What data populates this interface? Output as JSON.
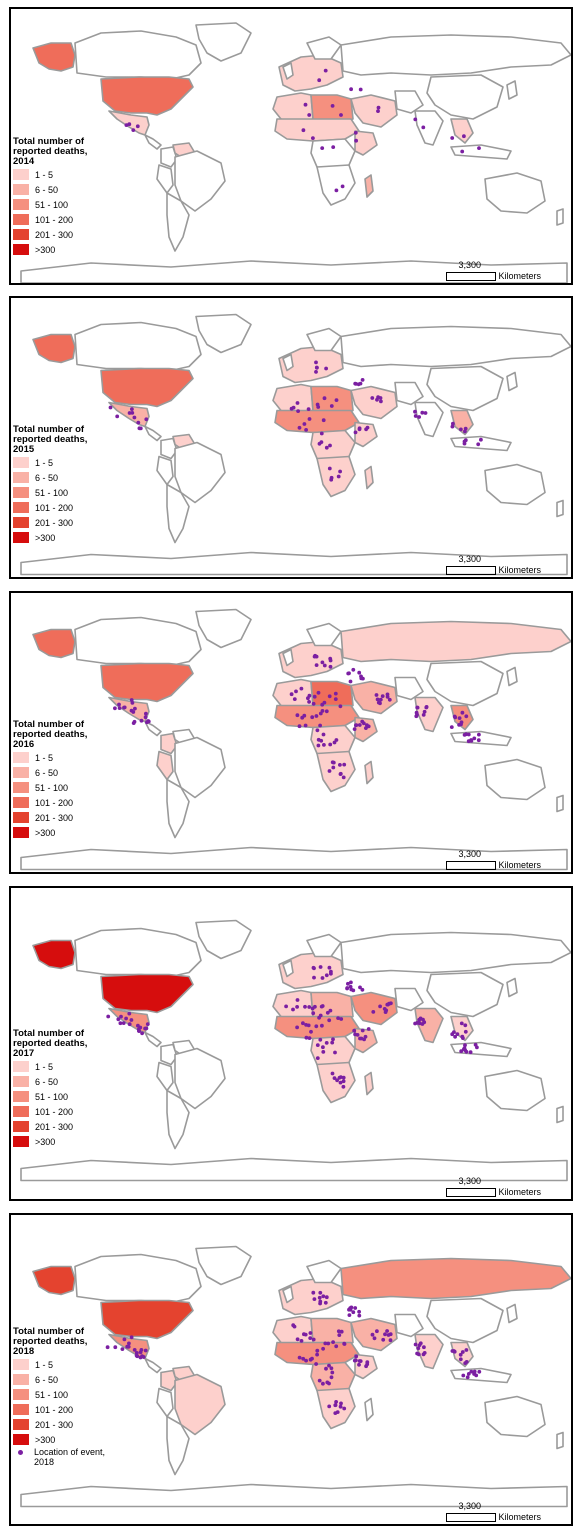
{
  "legend": {
    "title_line1": "Total number of",
    "title_line2": "reported deaths,",
    "classes": [
      {
        "label": "1 - 5",
        "color": "#fdd0cc"
      },
      {
        "label": "6 - 50",
        "color": "#f9b1a6"
      },
      {
        "label": "51 - 100",
        "color": "#f5907f"
      },
      {
        "label": "101 - 200",
        "color": "#ef6d5a"
      },
      {
        "label": "201 - 300",
        "color": "#e4432f"
      },
      {
        "label": ">300",
        "color": "#d60d0d"
      }
    ],
    "event_label_line1": "Location of event,",
    "event_label_line2": "2018"
  },
  "scale_bar": {
    "value": "3,300",
    "unit": "Kilometers"
  },
  "event_color": "#7b1fa2",
  "panels": [
    {
      "year": "2014",
      "country_class": {
        "usa": 4,
        "alaska": 4,
        "mexico": 1,
        "canada": 0,
        "brazil": 0,
        "colombia": 0,
        "venezuela": 1,
        "peru": 0,
        "nafrica_w": 1,
        "nafrica_e": 3,
        "sahel": 1,
        "central_africa": 0,
        "east_africa": 1,
        "south_africa": 0,
        "madagascar": 2,
        "middle_east": 1,
        "europe": 1,
        "russia": 0,
        "india": 0,
        "china": 0,
        "seasia": 1,
        "australia": 0
      },
      "events": "light"
    },
    {
      "year": "2015",
      "country_class": {
        "usa": 4,
        "alaska": 4,
        "mexico": 2,
        "canada": 0,
        "brazil": 0,
        "colombia": 0,
        "venezuela": 1,
        "peru": 0,
        "nafrica_w": 1,
        "nafrica_e": 3,
        "sahel": 3,
        "central_africa": 1,
        "east_africa": 1,
        "south_africa": 1,
        "madagascar": 1,
        "middle_east": 1,
        "europe": 1,
        "russia": 0,
        "india": 0,
        "china": 0,
        "seasia": 2,
        "australia": 0
      },
      "events": "medium"
    },
    {
      "year": "2016",
      "country_class": {
        "usa": 4,
        "alaska": 4,
        "mexico": 2,
        "canada": 0,
        "brazil": 0,
        "colombia": 1,
        "venezuela": 0,
        "peru": 1,
        "nafrica_w": 1,
        "nafrica_e": 4,
        "sahel": 3,
        "central_africa": 1,
        "east_africa": 2,
        "south_africa": 1,
        "madagascar": 1,
        "middle_east": 2,
        "europe": 1,
        "russia": 1,
        "india": 1,
        "china": 0,
        "seasia": 3,
        "australia": 0
      },
      "events": "heavy"
    },
    {
      "year": "2017",
      "country_class": {
        "usa": 6,
        "alaska": 6,
        "mexico": 3,
        "canada": 0,
        "brazil": 0,
        "colombia": 0,
        "venezuela": 0,
        "peru": 0,
        "nafrica_w": 1,
        "nafrica_e": 2,
        "sahel": 3,
        "central_africa": 1,
        "east_africa": 2,
        "south_africa": 1,
        "madagascar": 1,
        "middle_east": 3,
        "europe": 1,
        "russia": 0,
        "india": 2,
        "china": 0,
        "seasia": 1,
        "australia": 0
      },
      "events": "heavy"
    },
    {
      "year": "2018",
      "country_class": {
        "usa": 5,
        "alaska": 5,
        "mexico": 3,
        "canada": 0,
        "brazil": 1,
        "colombia": 1,
        "venezuela": 1,
        "peru": 0,
        "nafrica_w": 1,
        "nafrica_e": 2,
        "sahel": 3,
        "central_africa": 2,
        "east_africa": 1,
        "south_africa": 1,
        "madagascar": 0,
        "middle_east": 2,
        "europe": 1,
        "russia": 3,
        "india": 1,
        "china": 0,
        "seasia": 1,
        "australia": 0
      },
      "events": "heavy",
      "show_event_legend": true
    }
  ]
}
